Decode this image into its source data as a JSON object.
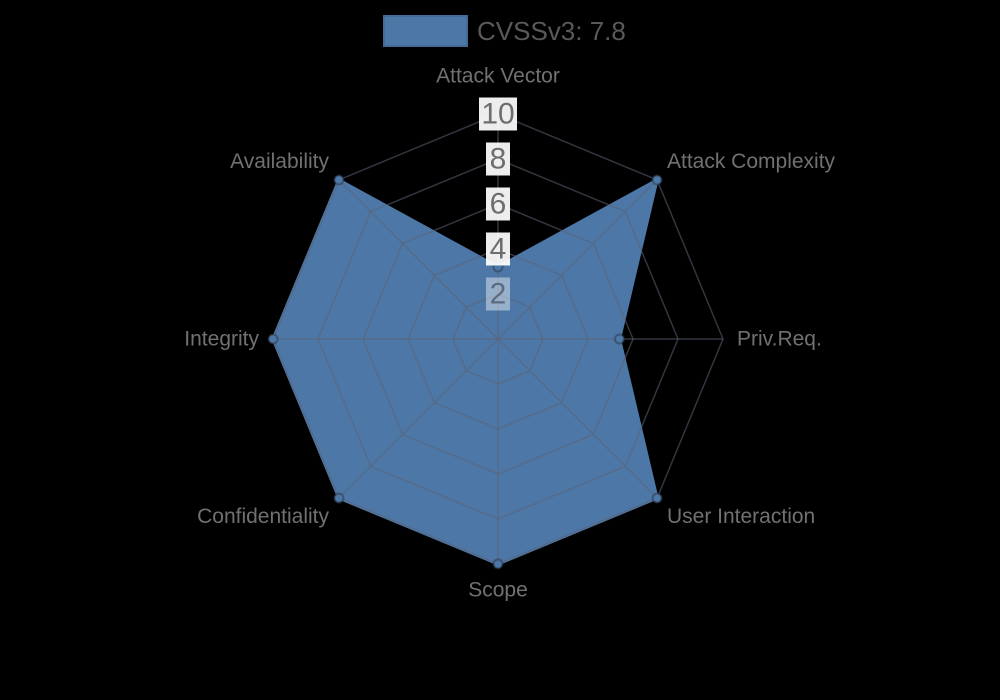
{
  "legend": {
    "label": "CVSSv3: 7.8",
    "swatch_color": "#4d77a6"
  },
  "chart_data": {
    "type": "radar",
    "categories": [
      "Attack Vector",
      "Attack Complexity",
      "Priv.Req.",
      "User Interaction",
      "Scope",
      "Confidentiality",
      "Integrity",
      "Availability"
    ],
    "series": [
      {
        "name": "CVSSv3: 7.8",
        "values": [
          3.2,
          10,
          5.4,
          10,
          10,
          10,
          10,
          10
        ]
      }
    ],
    "ticks": [
      2,
      4,
      6,
      8,
      10
    ],
    "rlim": [
      0,
      10
    ],
    "grid": "on",
    "grid_shape": "polygon",
    "legend_position": "top",
    "fill_color": "#4d77a6",
    "marker_edge_color": "rgba(40,52,70,0.5)",
    "grid_color": "rgba(92,98,116,0.55)",
    "label_color": "#6f7173",
    "tick_color": "#6d6d6d",
    "tick_color_inner": "#5c6b81",
    "tick_backdrop": "rgba(255,255,255,0.93)",
    "tick_backdrop_inner": "rgba(255,255,255,0.42)",
    "background": "#000000"
  }
}
